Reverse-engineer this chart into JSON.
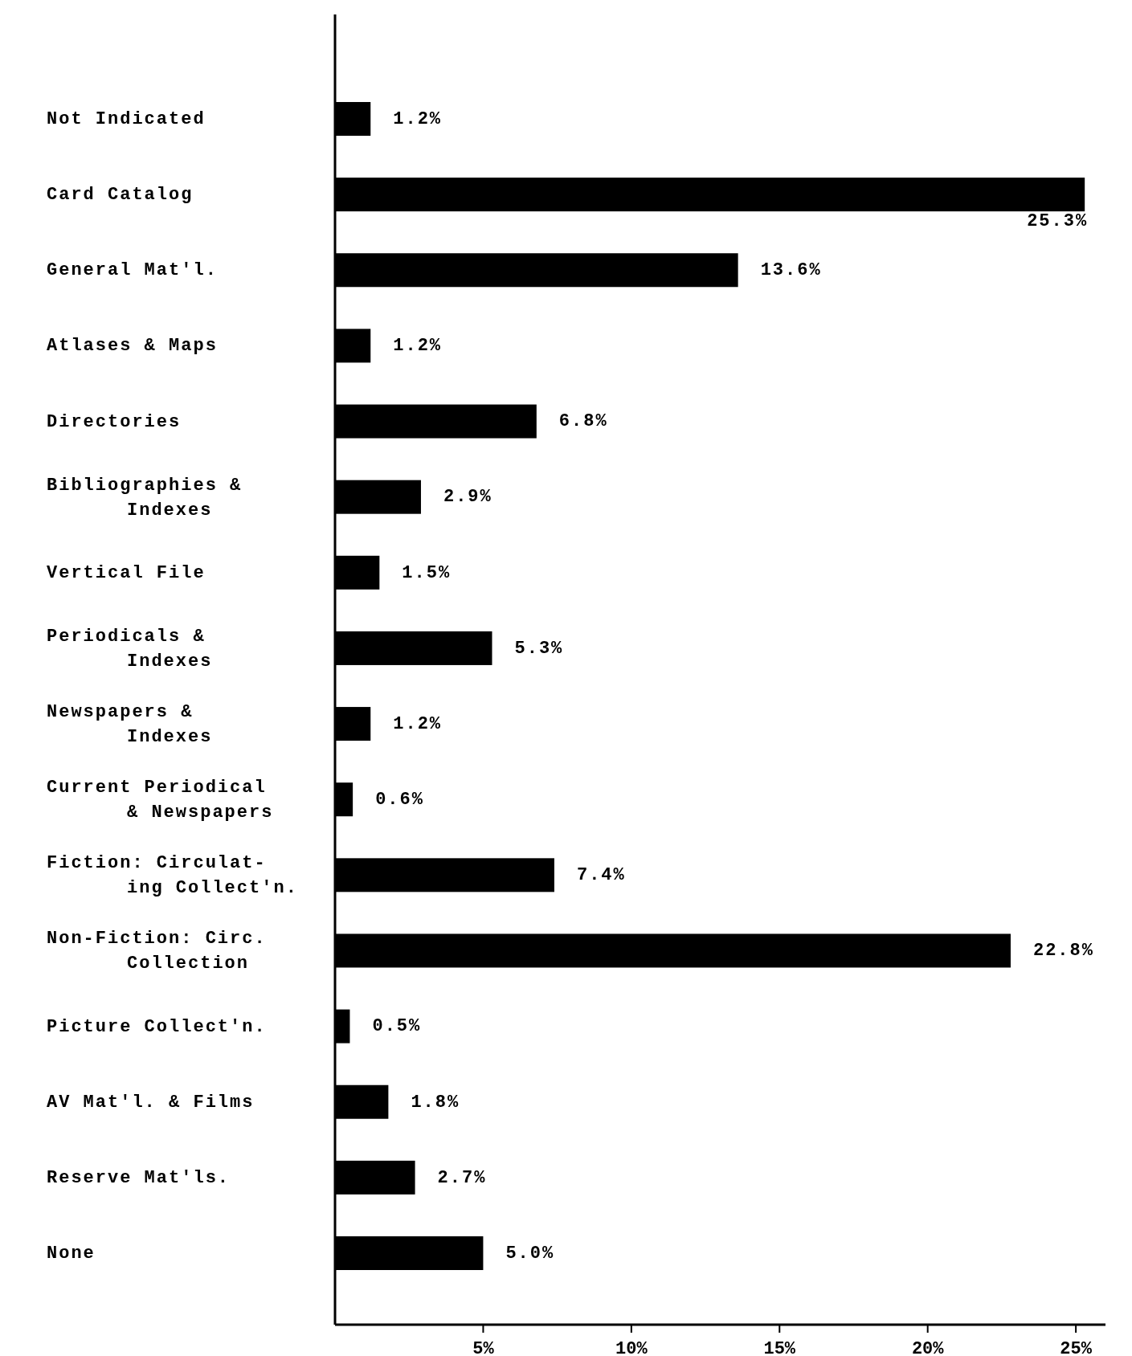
{
  "chart_data": {
    "type": "bar",
    "orientation": "horizontal",
    "categories": [
      "Not Indicated",
      "Card Catalog",
      "General Mat'l.",
      "Atlases & Maps",
      "Directories",
      "Bibliographies &\nIndexes",
      "Vertical File",
      "Periodicals &\nIndexes",
      "Newspapers &\nIndexes",
      "Current Periodical\n& Newspapers",
      "Fiction: Circulat-\ning Collect'n.",
      "Non-Fiction: Circ.\nCollection",
      "Picture Collect'n.",
      "AV Mat'l. & Films",
      "Reserve Mat'ls.",
      "None"
    ],
    "values": [
      1.2,
      25.3,
      13.6,
      1.2,
      6.8,
      2.9,
      1.5,
      5.3,
      1.2,
      0.6,
      7.4,
      22.8,
      0.5,
      1.8,
      2.7,
      5.0
    ],
    "value_labels": [
      "1.2%",
      "25.3%",
      "13.6%",
      "1.2%",
      "6.8%",
      "2.9%",
      "1.5%",
      "5.3%",
      "1.2%",
      "0.6%",
      "7.4%",
      "22.8%",
      "0.5%",
      "1.8%",
      "2.7%",
      "5.0%"
    ],
    "color": "#000000",
    "xlim": [
      0,
      26
    ],
    "xticks": [
      {
        "value": 5,
        "label": "5%"
      },
      {
        "value": 10,
        "label": "10%"
      },
      {
        "value": 15,
        "label": "15%"
      },
      {
        "value": 20,
        "label": "20%"
      },
      {
        "value": 25,
        "label": "25%"
      }
    ],
    "grid": false
  }
}
